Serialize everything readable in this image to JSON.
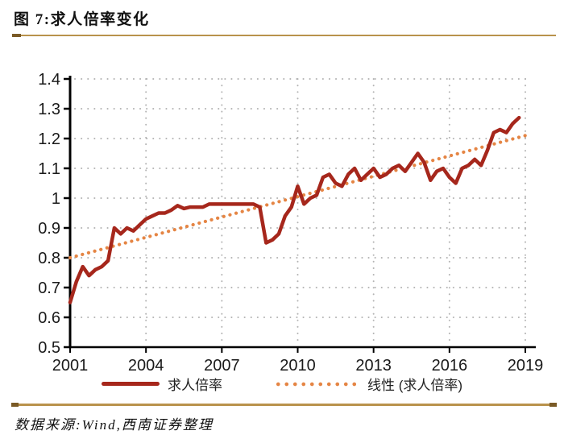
{
  "header": {
    "figure_label": "图 7:求人倍率变化"
  },
  "source_note": "数据来源:Wind,西南证券整理",
  "legend": {
    "series_label": "求人倍率",
    "trend_label": "线性 (求人倍率)"
  },
  "colors": {
    "series": "#A6271C",
    "trend": "#E58544",
    "grid": "#b3b3b3",
    "axis": "#000000",
    "tick_text": "#1a1a1a",
    "rule_gold": "#B9924C",
    "rule_dark": "#7A5A26"
  },
  "chart_data": {
    "type": "line",
    "title": "求人倍率变化",
    "xlabel": "",
    "ylabel": "",
    "grid": true,
    "legend_position": "bottom",
    "ylim": [
      0.5,
      1.4
    ],
    "y_ticks": [
      0.5,
      0.6,
      0.7,
      0.8,
      0.9,
      1.0,
      1.1,
      1.2,
      1.3,
      1.4
    ],
    "y_tick_labels": [
      "0.5",
      "0.6",
      "0.7",
      "0.8",
      "0.9",
      "1",
      "1.1",
      "1.2",
      "1.3",
      "1.4"
    ],
    "x_tick_years": [
      2001,
      2004,
      2007,
      2010,
      2013,
      2016,
      2019
    ],
    "x_start_year": 2001,
    "frequency": "quarterly",
    "series": [
      {
        "name": "求人倍率",
        "kind": "line",
        "color": "#A6271C",
        "values": [
          0.65,
          0.72,
          0.77,
          0.74,
          0.76,
          0.77,
          0.79,
          0.9,
          0.88,
          0.9,
          0.89,
          0.91,
          0.93,
          0.94,
          0.95,
          0.95,
          0.96,
          0.975,
          0.965,
          0.97,
          0.97,
          0.97,
          0.98,
          0.98,
          0.98,
          0.98,
          0.98,
          0.98,
          0.98,
          0.98,
          0.97,
          0.85,
          0.86,
          0.88,
          0.94,
          0.97,
          1.04,
          0.98,
          1.0,
          1.01,
          1.07,
          1.08,
          1.05,
          1.04,
          1.08,
          1.1,
          1.06,
          1.08,
          1.1,
          1.07,
          1.08,
          1.1,
          1.11,
          1.09,
          1.12,
          1.15,
          1.12,
          1.06,
          1.09,
          1.1,
          1.07,
          1.05,
          1.1,
          1.11,
          1.13,
          1.11,
          1.16,
          1.22,
          1.23,
          1.22,
          1.25,
          1.27
        ]
      },
      {
        "name": "线性 (求人倍率)",
        "kind": "linear_trend",
        "color": "#E58544",
        "start_value": 0.8,
        "end_value": 1.21,
        "x_end_year": 2019
      }
    ]
  }
}
